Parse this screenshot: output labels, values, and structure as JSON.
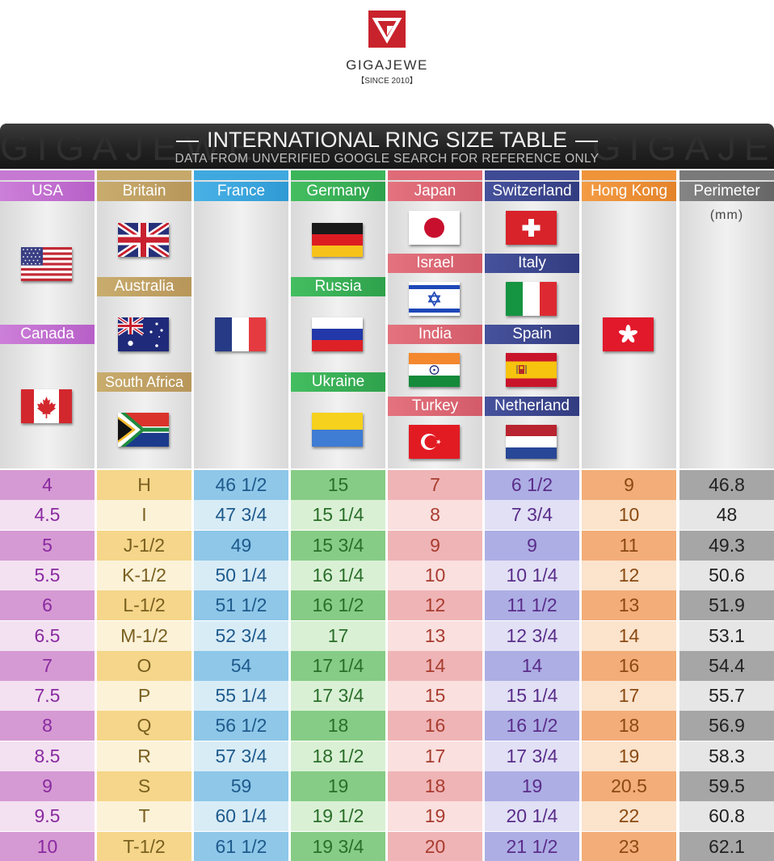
{
  "brand": {
    "name": "GIGAJEWE",
    "since": "【SINCE 2010】"
  },
  "banner": {
    "ghost_text": "GIGAJEWE",
    "title": "INTERNATIONAL RING SIZE TABLE",
    "subtitle": "DATA FROM UNVERIFIED GOOGLE SEARCH FOR REFERENCE ONLY"
  },
  "columns": {
    "usa": {
      "label": "USA",
      "extra": [
        "Canada"
      ]
    },
    "britain": {
      "label": "Britain",
      "extra": [
        "Australia",
        "South Africa"
      ]
    },
    "france": {
      "label": "France"
    },
    "germany": {
      "label": "Germany",
      "extra": [
        "Russia",
        "Ukraine"
      ]
    },
    "japan": {
      "label": "Japan",
      "extra": [
        "Israel",
        "India",
        "Turkey"
      ]
    },
    "switzerland": {
      "label": "Switzerland",
      "extra": [
        "Italy",
        "Spain",
        "Netherland"
      ]
    },
    "hongkong": {
      "label": "Hong Kong"
    },
    "perimeter": {
      "label": "Perimeter",
      "unit": "(mm)"
    }
  },
  "flags": [
    "usa-flag",
    "canada-flag",
    "uk-flag",
    "australia-flag",
    "south-africa-flag",
    "france-flag",
    "germany-flag",
    "russia-flag",
    "ukraine-flag",
    "japan-flag",
    "israel-flag",
    "india-flag",
    "turkey-flag",
    "switzerland-flag",
    "italy-flag",
    "spain-flag",
    "netherlands-flag",
    "hong-kong-flag"
  ],
  "column_colors": {
    "usa": "#c679d3",
    "britain": "#c6a96a",
    "france": "#3fa9df",
    "germany": "#3cb55a",
    "japan": "#df6b78",
    "switzerland": "#3e4a94",
    "hongkong": "#f0943a",
    "perimeter": "#7a7a7a"
  },
  "rows": [
    [
      "4",
      "H",
      "46 1/2",
      "15",
      "7",
      "6 1/2",
      "9",
      "46.8"
    ],
    [
      "4.5",
      "I",
      "47 3/4",
      "15 1/4",
      "8",
      "7 3/4",
      "10",
      "48"
    ],
    [
      "5",
      "J-1/2",
      "49",
      "15 3/4",
      "9",
      "9",
      "11",
      "49.3"
    ],
    [
      "5.5",
      "K-1/2",
      "50 1/4",
      "16 1/4",
      "10",
      "10 1/4",
      "12",
      "50.6"
    ],
    [
      "6",
      "L-1/2",
      "51 1/2",
      "16 1/2",
      "12",
      "11 1/2",
      "13",
      "51.9"
    ],
    [
      "6.5",
      "M-1/2",
      "52 3/4",
      "17",
      "13",
      "12 3/4",
      "14",
      "53.1"
    ],
    [
      "7",
      "O",
      "54",
      "17 1/4",
      "14",
      "14",
      "16",
      "54.4"
    ],
    [
      "7.5",
      "P",
      "55 1/4",
      "17 3/4",
      "15",
      "15 1/4",
      "17",
      "55.7"
    ],
    [
      "8",
      "Q",
      "56 1/2",
      "18",
      "16",
      "16 1/2",
      "18",
      "56.9"
    ],
    [
      "8.5",
      "R",
      "57 3/4",
      "18 1/2",
      "17",
      "17 3/4",
      "19",
      "58.3"
    ],
    [
      "9",
      "S",
      "59",
      "19",
      "18",
      "19",
      "20.5",
      "59.5"
    ],
    [
      "9.5",
      "T",
      "60 1/4",
      "19 1/2",
      "19",
      "20 1/4",
      "22",
      "60.8"
    ],
    [
      "10",
      "T-1/2",
      "61 1/2",
      "19 3/4",
      "20",
      "21 1/2",
      "23",
      "62.1"
    ]
  ]
}
